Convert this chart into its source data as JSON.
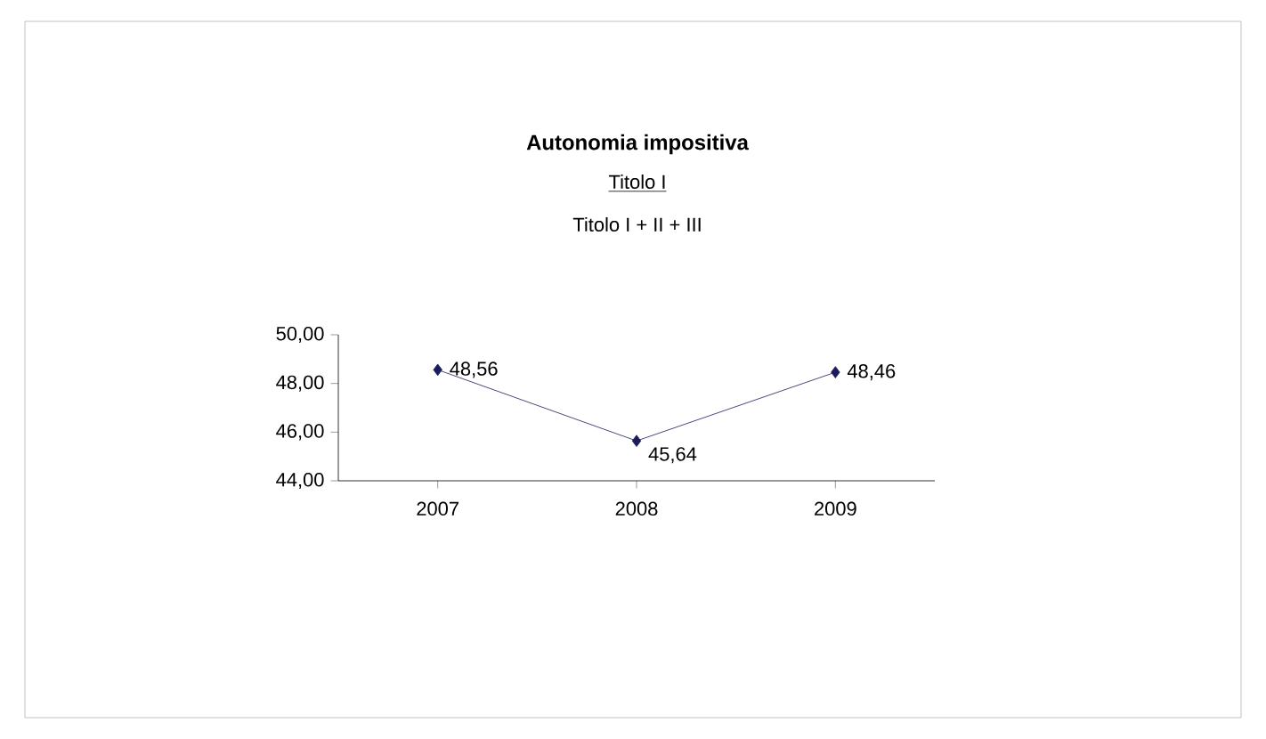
{
  "chart_data": {
    "type": "line",
    "title": "Autonomia impositiva",
    "subtitle": "Titolo I",
    "annotations": [
      "Titolo I + II + III"
    ],
    "categories": [
      "2007",
      "2008",
      "2009"
    ],
    "series": [
      {
        "color": "#1c1c5c",
        "values": [
          48.56,
          45.64,
          48.46
        ],
        "value_labels": [
          "48,56",
          "45,64",
          "48,46"
        ]
      }
    ],
    "ylim": [
      44,
      50
    ],
    "yticks": [
      {
        "value": 44,
        "label": "44,00"
      },
      {
        "value": 46,
        "label": "46,00"
      },
      {
        "value": 48,
        "label": "48,00"
      },
      {
        "value": 50,
        "label": "50,00"
      }
    ],
    "marker": "diamond",
    "grid": false
  }
}
